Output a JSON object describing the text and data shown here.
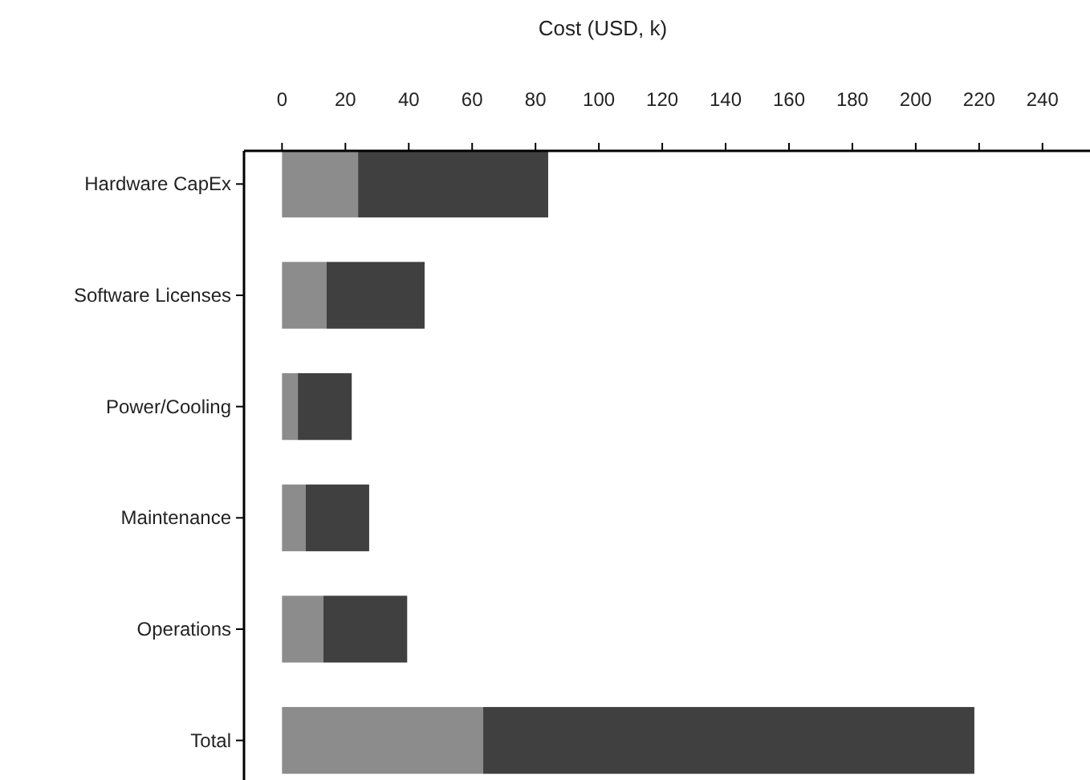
{
  "chart_data": {
    "type": "bar",
    "orientation": "horizontal",
    "stacked": true,
    "xlabel": "Cost (USD, k)",
    "categories": [
      "Hardware CapEx",
      "Software Licenses",
      "Power/Cooling",
      "Maintenance",
      "Operations",
      "Total"
    ],
    "series": [
      {
        "color": "#8c8c8c",
        "values": [
          24,
          14,
          5,
          7.5,
          13,
          63.5
        ]
      },
      {
        "color": "#404040",
        "values": [
          60,
          31,
          17,
          20,
          26.5,
          155
        ]
      }
    ],
    "xlim": [
      -12,
      255
    ],
    "xticks": [
      0,
      20,
      40,
      60,
      80,
      100,
      120,
      140,
      160,
      180,
      200,
      220,
      240
    ],
    "grid": false
  }
}
